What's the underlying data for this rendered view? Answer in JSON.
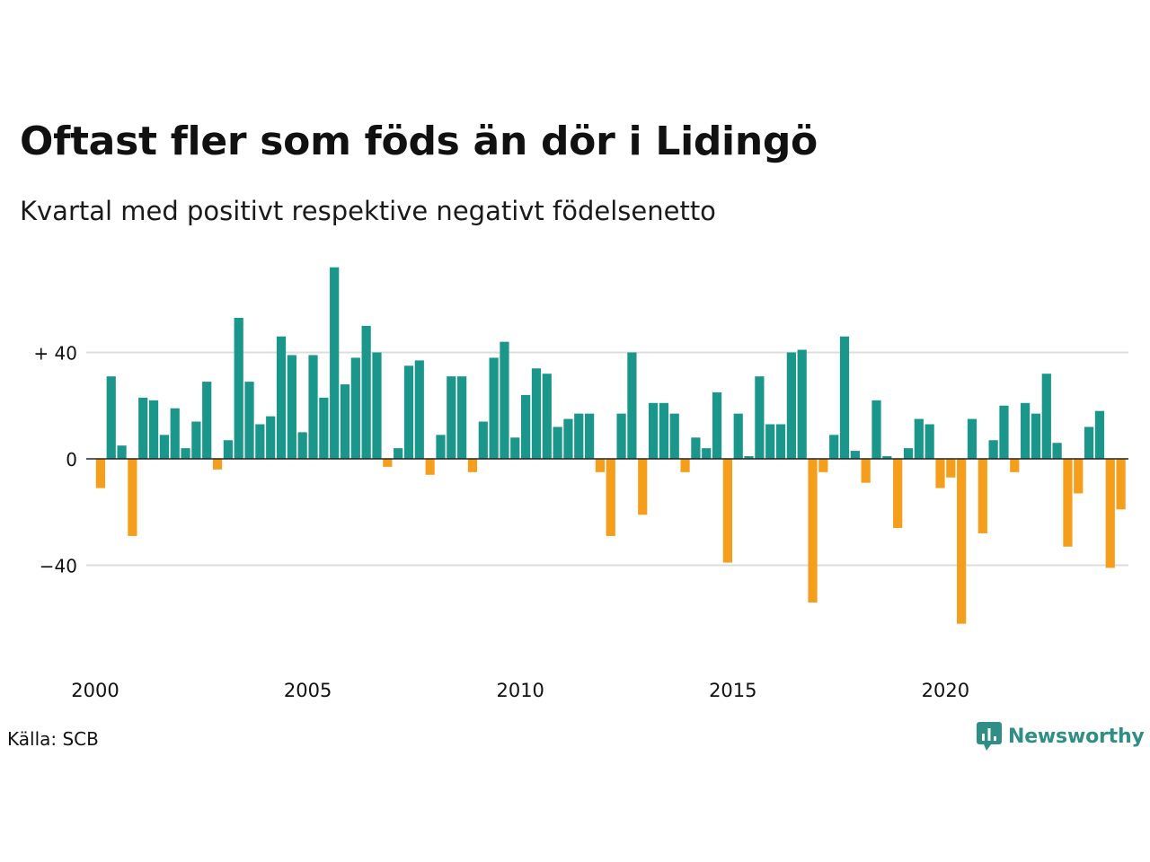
{
  "title": "Oftast fler som föds än dör i Lidingö",
  "subtitle": "Kvartal med positivt respektive negativt födelsenetto",
  "source": "Källa: SCB",
  "brand": "Newsworthy",
  "colors": {
    "positive": "#1a978a",
    "negative": "#f59e1c",
    "grid": "#dddddd",
    "brand": "#2f8e86"
  },
  "chart_data": {
    "type": "bar",
    "x_unit": "quarter",
    "x_start": "2000 Q1",
    "y_tick_values": [
      40,
      0,
      -40
    ],
    "y_tick_labels": [
      "+ 40",
      "0",
      "−40"
    ],
    "x_tick_years": [
      2000,
      2005,
      2010,
      2015,
      2020
    ],
    "x_tick_labels": [
      "2000",
      "2005",
      "2010",
      "2015",
      "2020"
    ],
    "ylim": [
      -68,
      75
    ],
    "grid": true,
    "values": [
      -11,
      31,
      5,
      -29,
      23,
      22,
      9,
      19,
      4,
      14,
      29,
      -4,
      7,
      53,
      29,
      13,
      16,
      46,
      39,
      10,
      39,
      23,
      72,
      28,
      38,
      50,
      40,
      -3,
      4,
      35,
      37,
      -6,
      9,
      31,
      31,
      -5,
      14,
      38,
      44,
      8,
      24,
      34,
      32,
      12,
      15,
      17,
      17,
      -5,
      -29,
      17,
      40,
      -21,
      21,
      21,
      17,
      -5,
      8,
      4,
      25,
      -39,
      17,
      1,
      31,
      13,
      13,
      40,
      41,
      -54,
      -5,
      9,
      46,
      3,
      -9,
      22,
      1,
      -26,
      4,
      15,
      13,
      -11,
      -7,
      -62,
      15,
      -28,
      7,
      20,
      -5,
      21,
      17,
      32,
      6,
      -33,
      -13,
      12,
      18,
      -41,
      -19
    ]
  }
}
